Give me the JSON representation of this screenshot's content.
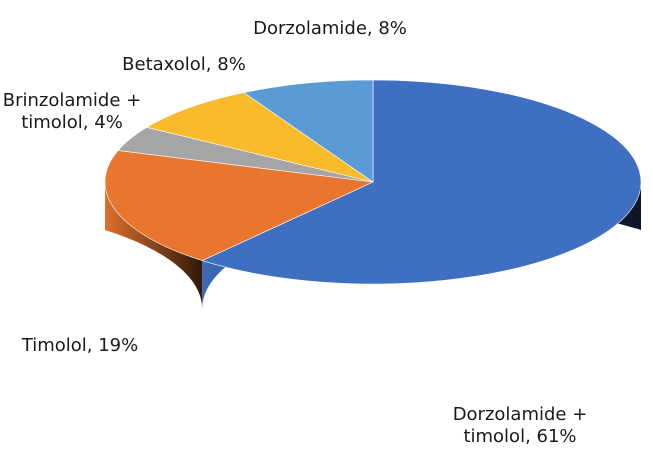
{
  "chart_data": {
    "type": "pie",
    "slices": [
      {
        "label_lines": [
          "Dorzolamide +",
          "timolol, 61%"
        ],
        "category": "Dorzolamide + timolol",
        "value": 61,
        "color": "#3f6fc0"
      },
      {
        "label_lines": [
          "Timolol, 19%"
        ],
        "category": "Timolol",
        "value": 19,
        "color": "#e8762e"
      },
      {
        "label_lines": [
          "Brinzolamide +",
          "timolol, 4%"
        ],
        "category": "Brinzolamide + timolol",
        "value": 4,
        "color": "#a5a5a5"
      },
      {
        "label_lines": [
          "Betaxolol, 8%"
        ],
        "category": "Betaxolol",
        "value": 8,
        "color": "#f8bb2b"
      },
      {
        "label_lines": [
          "Dorzolamide, 8%"
        ],
        "category": "Dorzolamide",
        "value": 8,
        "color": "#5b9bd5"
      }
    ]
  }
}
